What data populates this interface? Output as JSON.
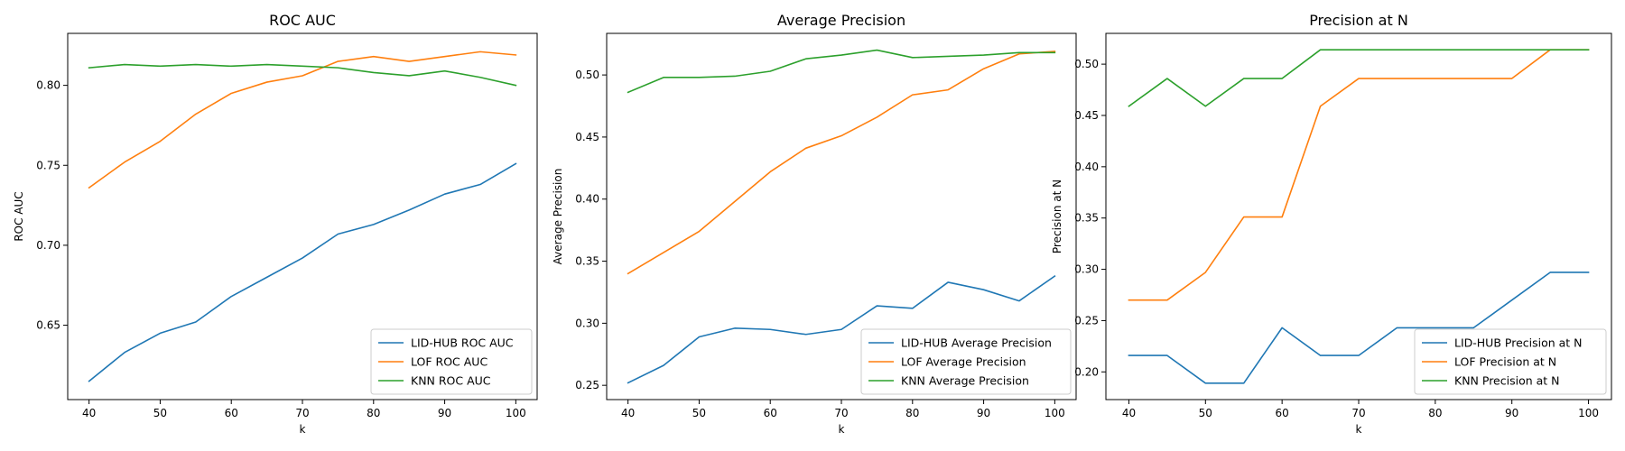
{
  "chart_data": [
    {
      "type": "line",
      "title": "ROC AUC",
      "xlabel": "k",
      "ylabel": "ROC AUC",
      "xlim": [
        37,
        103
      ],
      "ylim": [
        0.6035,
        0.8325
      ],
      "xticks": [
        40,
        50,
        60,
        70,
        80,
        90,
        100
      ],
      "yticks": [
        0.65,
        0.7,
        0.75,
        0.8
      ],
      "ytick_labels": [
        "0.65",
        "0.70",
        "0.75",
        "0.80"
      ],
      "legend_position": "lower-right",
      "grid": false,
      "x": [
        40,
        45,
        50,
        55,
        60,
        65,
        70,
        75,
        80,
        85,
        90,
        95,
        100
      ],
      "series": [
        {
          "name": "LID-HUB ROC AUC",
          "color": "#1f77b4",
          "values": [
            0.615,
            0.633,
            0.645,
            0.652,
            0.668,
            0.68,
            0.692,
            0.707,
            0.713,
            0.722,
            0.732,
            0.738,
            0.751
          ]
        },
        {
          "name": "LOF ROC AUC",
          "color": "#ff7f0e",
          "values": [
            0.736,
            0.752,
            0.765,
            0.782,
            0.795,
            0.802,
            0.806,
            0.815,
            0.818,
            0.815,
            0.818,
            0.821,
            0.819
          ]
        },
        {
          "name": "KNN ROC AUC",
          "color": "#2ca02c",
          "values": [
            0.811,
            0.813,
            0.812,
            0.813,
            0.812,
            0.813,
            0.812,
            0.811,
            0.808,
            0.806,
            0.809,
            0.805,
            0.8
          ]
        }
      ]
    },
    {
      "type": "line",
      "title": "Average Precision",
      "xlabel": "k",
      "ylabel": "Average Precision",
      "xlim": [
        37,
        103
      ],
      "ylim": [
        0.2385,
        0.5335
      ],
      "xticks": [
        40,
        50,
        60,
        70,
        80,
        90,
        100
      ],
      "yticks": [
        0.25,
        0.3,
        0.35,
        0.4,
        0.45,
        0.5
      ],
      "ytick_labels": [
        "0.25",
        "0.30",
        "0.35",
        "0.40",
        "0.45",
        "0.50"
      ],
      "legend_position": "lower-right",
      "grid": false,
      "x": [
        40,
        45,
        50,
        55,
        60,
        65,
        70,
        75,
        80,
        85,
        90,
        95,
        100
      ],
      "series": [
        {
          "name": "LID-HUB Average Precision",
          "color": "#1f77b4",
          "values": [
            0.252,
            0.266,
            0.289,
            0.296,
            0.295,
            0.291,
            0.295,
            0.314,
            0.312,
            0.333,
            0.327,
            0.318,
            0.338
          ]
        },
        {
          "name": "LOF Average Precision",
          "color": "#ff7f0e",
          "values": [
            0.34,
            0.357,
            0.374,
            0.398,
            0.422,
            0.441,
            0.451,
            0.466,
            0.484,
            0.488,
            0.505,
            0.517,
            0.519
          ]
        },
        {
          "name": "KNN Average Precision",
          "color": "#2ca02c",
          "values": [
            0.486,
            0.498,
            0.498,
            0.499,
            0.503,
            0.513,
            0.516,
            0.52,
            0.514,
            0.515,
            0.516,
            0.518,
            0.518
          ]
        }
      ]
    },
    {
      "type": "line",
      "title": "Precision at N",
      "xlabel": "k",
      "ylabel": "Precision at N",
      "xlim": [
        37,
        103
      ],
      "ylim": [
        0.173,
        0.53
      ],
      "xticks": [
        40,
        50,
        60,
        70,
        80,
        90,
        100
      ],
      "yticks": [
        0.2,
        0.25,
        0.3,
        0.35,
        0.4,
        0.45,
        0.5
      ],
      "ytick_labels": [
        "0.20",
        "0.25",
        "0.30",
        "0.35",
        "0.40",
        "0.45",
        "0.50"
      ],
      "legend_position": "lower-right",
      "grid": false,
      "x": [
        40,
        45,
        50,
        55,
        60,
        65,
        70,
        75,
        80,
        85,
        90,
        95,
        100
      ],
      "series": [
        {
          "name": "LID-HUB Precision at N",
          "color": "#1f77b4",
          "values": [
            0.216,
            0.216,
            0.189,
            0.189,
            0.243,
            0.216,
            0.216,
            0.243,
            0.243,
            0.243,
            0.27,
            0.297,
            0.297
          ]
        },
        {
          "name": "LOF Precision at N",
          "color": "#ff7f0e",
          "values": [
            0.27,
            0.27,
            0.297,
            0.351,
            0.351,
            0.459,
            0.486,
            0.486,
            0.486,
            0.486,
            0.486,
            0.514,
            0.514
          ]
        },
        {
          "name": "KNN Precision at N",
          "color": "#2ca02c",
          "values": [
            0.459,
            0.486,
            0.459,
            0.486,
            0.486,
            0.514,
            0.514,
            0.514,
            0.514,
            0.514,
            0.514,
            0.514,
            0.514
          ]
        }
      ]
    }
  ]
}
